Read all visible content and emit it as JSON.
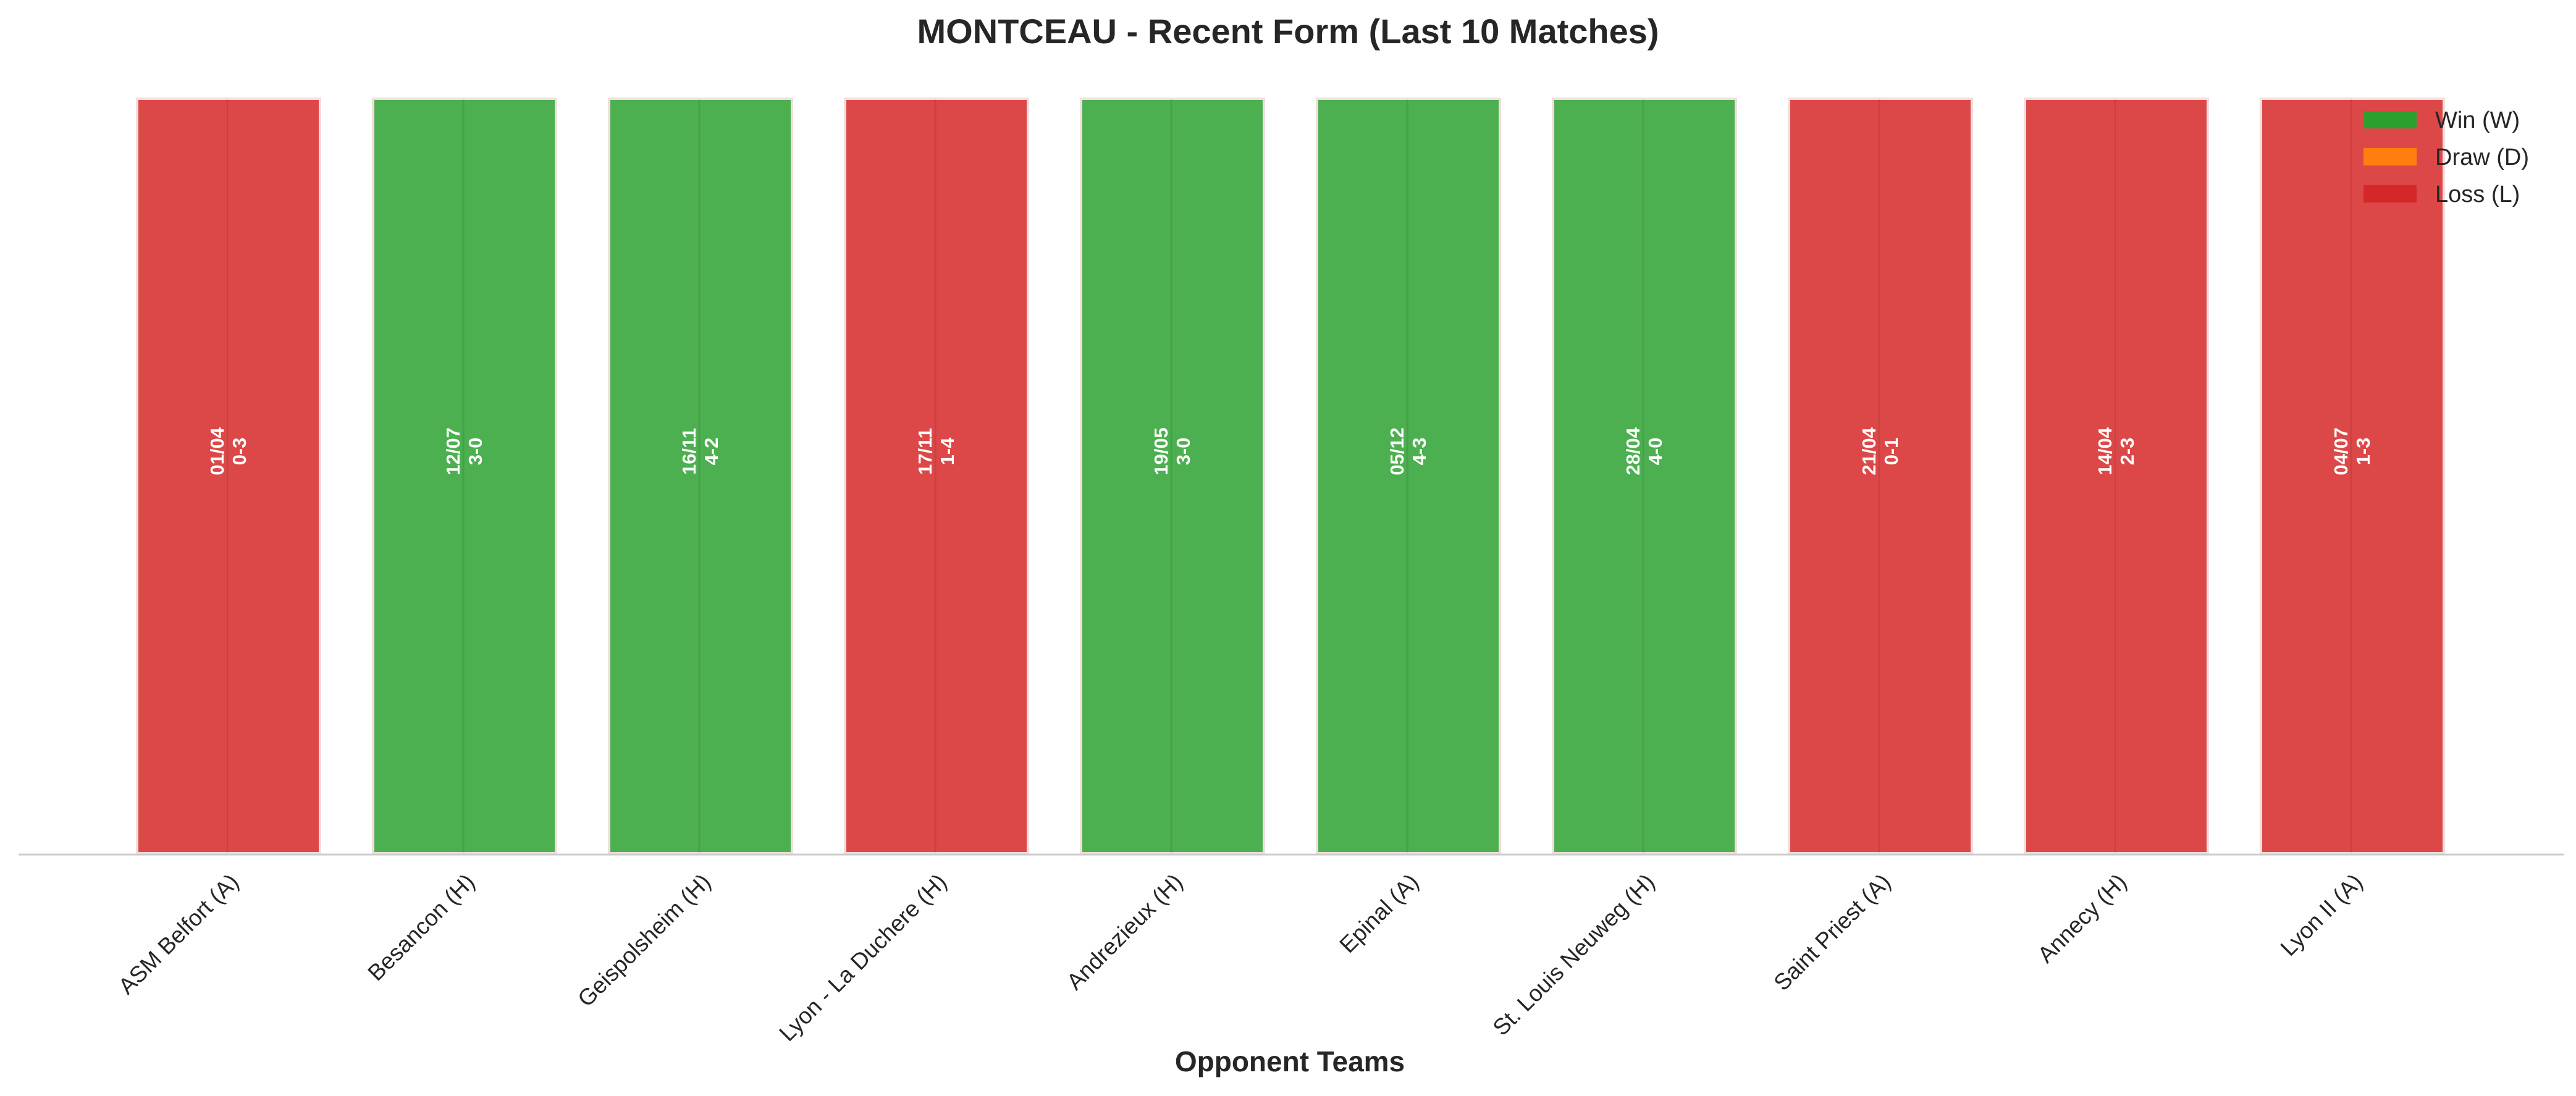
{
  "chart_data": {
    "type": "bar",
    "title": "MONTCEAU - Recent Form (Last 10 Matches)",
    "xlabel": "Opponent Teams",
    "ylabel": "",
    "categories": [
      "ASM Belfort (A)",
      "Besancon (H)",
      "Geispolsheim (H)",
      "Lyon - La Duchere (H)",
      "Andrezieux (H)",
      "Epinal (A)",
      "St. Louis Neuweg (H)",
      "Saint Priest (A)",
      "Annecy (H)",
      "Lyon II (A)"
    ],
    "results": [
      "L",
      "W",
      "W",
      "L",
      "W",
      "W",
      "W",
      "L",
      "L",
      "L"
    ],
    "dates": [
      "01/04",
      "12/07",
      "16/11",
      "17/11",
      "19/05",
      "05/12",
      "28/04",
      "21/04",
      "14/04",
      "04/07"
    ],
    "scores": [
      "0-3",
      "3-0",
      "4-2",
      "1-4",
      "3-0",
      "4-3",
      "4-0",
      "0-1",
      "2-3",
      "1-3"
    ],
    "values": [
      1,
      1,
      1,
      1,
      1,
      1,
      1,
      1,
      1,
      1
    ],
    "ylim": [
      0,
      1
    ],
    "grid": false,
    "legend": {
      "placement": "top-right",
      "entries": [
        {
          "key": "W",
          "label": "Win (W)",
          "color": "#2ca02c"
        },
        {
          "key": "D",
          "label": "Draw (D)",
          "color": "#ff7f0e"
        },
        {
          "key": "L",
          "label": "Loss (L)",
          "color": "#d62728"
        }
      ]
    },
    "bar_colors": {
      "W": "#4caf50",
      "D": "#ff8c1a",
      "L": "#dc4848"
    }
  }
}
